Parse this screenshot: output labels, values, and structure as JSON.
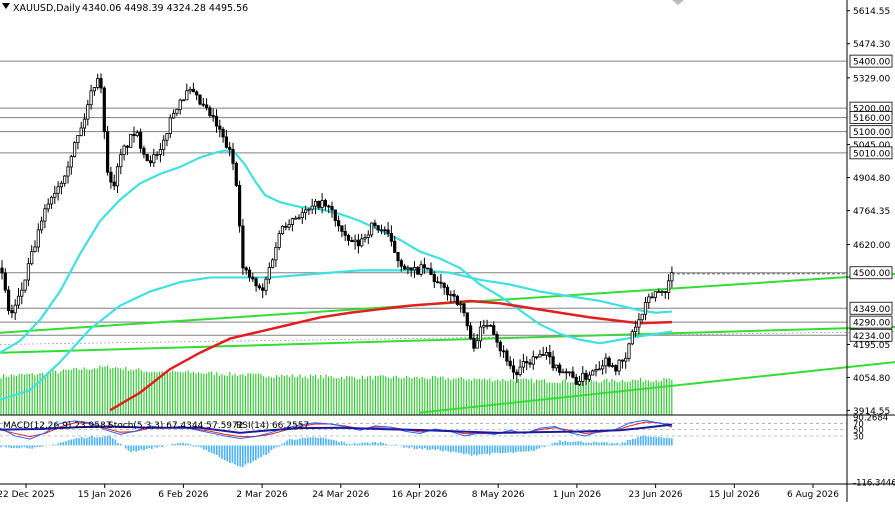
{
  "header": {
    "symbol": "XAUUSD,Daily",
    "ohlc": "4340.06 4498.39 4324.28 4495.56"
  },
  "indicator_header": {
    "macd": "MACD(12,26,9) 23.9587",
    "stoch": "Stoch(5,3,3) 67.4344 57.5972",
    "rsi": "RSI(14) 66.2557"
  },
  "colors": {
    "candles": "#000000",
    "sma_fast": "#40e0e0",
    "sma_slow": "#e02020",
    "trendline": "#33dd33",
    "volume": "#33cc33",
    "level_label_bg": "#ffffff"
  },
  "chart_data": {
    "type": "candlestick",
    "x_tick_labels": [
      "22 Dec 2025",
      "15 Jan 2026",
      "6 Feb 2026",
      "2 Mar 2026",
      "24 Mar 2026",
      "16 Apr 2026",
      "8 May 2026",
      "1 Jun 2026",
      "23 Jun 2026",
      "15 Jul 2026",
      "6 Aug 2026"
    ],
    "y_tick_labels": [
      "5614.55",
      "5474.30",
      "5329.00",
      "5045.00",
      "4904.80",
      "4764.35",
      "4620.00",
      "4195.05",
      "4054.80",
      "3914.55"
    ],
    "ylim": [
      3895,
      5660
    ],
    "levels": [
      {
        "label": "5400.00",
        "value": 5400
      },
      {
        "label": "5200.00",
        "value": 5200
      },
      {
        "label": "5160.00",
        "value": 5160
      },
      {
        "label": "5100.00",
        "value": 5100
      },
      {
        "label": "5010.00",
        "value": 5010
      },
      {
        "label": "4500.00",
        "value": 4500
      },
      {
        "label": "4349.00",
        "value": 4349
      },
      {
        "label": "4290.00",
        "value": 4290
      },
      {
        "label": "4234.00",
        "value": 4234
      }
    ],
    "price_path": [
      [
        0,
        4520
      ],
      [
        4,
        4450
      ],
      [
        10,
        4310
      ],
      [
        20,
        4400
      ],
      [
        35,
        4620
      ],
      [
        48,
        4800
      ],
      [
        62,
        4900
      ],
      [
        75,
        5050
      ],
      [
        82,
        5120
      ],
      [
        92,
        5280
      ],
      [
        100,
        5360
      ],
      [
        106,
        4980
      ],
      [
        112,
        4850
      ],
      [
        122,
        5010
      ],
      [
        135,
        5100
      ],
      [
        148,
        4980
      ],
      [
        160,
        5000
      ],
      [
        170,
        5150
      ],
      [
        180,
        5240
      ],
      [
        190,
        5270
      ],
      [
        200,
        5220
      ],
      [
        212,
        5160
      ],
      [
        222,
        5080
      ],
      [
        232,
        4990
      ],
      [
        238,
        4850
      ],
      [
        242,
        4520
      ],
      [
        250,
        4480
      ],
      [
        262,
        4410
      ],
      [
        272,
        4560
      ],
      [
        282,
        4700
      ],
      [
        295,
        4740
      ],
      [
        308,
        4760
      ],
      [
        320,
        4800
      ],
      [
        332,
        4760
      ],
      [
        345,
        4640
      ],
      [
        358,
        4620
      ],
      [
        372,
        4700
      ],
      [
        385,
        4680
      ],
      [
        398,
        4560
      ],
      [
        410,
        4500
      ],
      [
        425,
        4520
      ],
      [
        440,
        4440
      ],
      [
        455,
        4400
      ],
      [
        465,
        4320
      ],
      [
        472,
        4180
      ],
      [
        480,
        4250
      ],
      [
        490,
        4300
      ],
      [
        500,
        4180
      ],
      [
        508,
        4130
      ],
      [
        515,
        4060
      ],
      [
        522,
        4100
      ],
      [
        532,
        4130
      ],
      [
        545,
        4150
      ],
      [
        556,
        4100
      ],
      [
        566,
        4080
      ],
      [
        576,
        4040
      ],
      [
        586,
        4060
      ],
      [
        596,
        4100
      ],
      [
        606,
        4130
      ],
      [
        616,
        4100
      ],
      [
        626,
        4130
      ],
      [
        632,
        4250
      ],
      [
        640,
        4300
      ],
      [
        648,
        4380
      ],
      [
        656,
        4420
      ],
      [
        664,
        4420
      ],
      [
        672,
        4495
      ]
    ],
    "volume_path": [
      [
        0,
        4060
      ],
      [
        40,
        4070
      ],
      [
        80,
        4090
      ],
      [
        110,
        4100
      ],
      [
        150,
        4080
      ],
      [
        200,
        4075
      ],
      [
        250,
        4065
      ],
      [
        300,
        4060
      ],
      [
        350,
        4055
      ],
      [
        400,
        4055
      ],
      [
        450,
        4050
      ],
      [
        500,
        4045
      ],
      [
        550,
        4040
      ],
      [
        600,
        4040
      ],
      [
        650,
        4045
      ],
      [
        672,
        4045
      ]
    ],
    "sma_fast": [
      [
        0,
        4160
      ],
      [
        20,
        4210
      ],
      [
        40,
        4300
      ],
      [
        60,
        4420
      ],
      [
        80,
        4580
      ],
      [
        100,
        4720
      ],
      [
        120,
        4810
      ],
      [
        140,
        4880
      ],
      [
        160,
        4920
      ],
      [
        180,
        4950
      ],
      [
        200,
        4990
      ],
      [
        215,
        5010
      ],
      [
        225,
        5020
      ],
      [
        235,
        5010
      ],
      [
        245,
        4960
      ],
      [
        255,
        4890
      ],
      [
        265,
        4830
      ],
      [
        280,
        4800
      ],
      [
        300,
        4780
      ],
      [
        320,
        4770
      ],
      [
        340,
        4750
      ],
      [
        360,
        4720
      ],
      [
        380,
        4680
      ],
      [
        400,
        4640
      ],
      [
        420,
        4590
      ],
      [
        440,
        4560
      ],
      [
        460,
        4520
      ],
      [
        480,
        4450
      ],
      [
        500,
        4400
      ],
      [
        520,
        4340
      ],
      [
        540,
        4280
      ],
      [
        560,
        4240
      ],
      [
        580,
        4215
      ],
      [
        600,
        4200
      ],
      [
        620,
        4215
      ],
      [
        640,
        4230
      ],
      [
        656,
        4240
      ],
      [
        672,
        4250
      ]
    ],
    "sma_mid": [
      [
        0,
        3960
      ],
      [
        30,
        4000
      ],
      [
        60,
        4120
      ],
      [
        90,
        4260
      ],
      [
        120,
        4360
      ],
      [
        150,
        4420
      ],
      [
        180,
        4460
      ],
      [
        210,
        4480
      ],
      [
        240,
        4480
      ],
      [
        270,
        4480
      ],
      [
        300,
        4490
      ],
      [
        330,
        4500
      ],
      [
        360,
        4510
      ],
      [
        390,
        4510
      ],
      [
        420,
        4510
      ],
      [
        450,
        4500
      ],
      [
        480,
        4470
      ],
      [
        510,
        4450
      ],
      [
        540,
        4420
      ],
      [
        570,
        4400
      ],
      [
        600,
        4380
      ],
      [
        620,
        4360
      ],
      [
        640,
        4340
      ],
      [
        656,
        4330
      ],
      [
        672,
        4335
      ]
    ],
    "sma_slow": [
      [
        110,
        3915
      ],
      [
        140,
        3990
      ],
      [
        170,
        4090
      ],
      [
        200,
        4160
      ],
      [
        230,
        4220
      ],
      [
        260,
        4250
      ],
      [
        290,
        4280
      ],
      [
        320,
        4310
      ],
      [
        350,
        4330
      ],
      [
        380,
        4345
      ],
      [
        410,
        4360
      ],
      [
        440,
        4370
      ],
      [
        470,
        4380
      ],
      [
        500,
        4370
      ],
      [
        530,
        4350
      ],
      [
        560,
        4330
      ],
      [
        590,
        4310
      ],
      [
        620,
        4295
      ],
      [
        640,
        4285
      ],
      [
        656,
        4288
      ],
      [
        672,
        4290
      ]
    ],
    "trendlines": [
      {
        "from": [
          0,
          4245
        ],
        "to": [
          895,
          4495
        ]
      },
      {
        "from": [
          0,
          4160
        ],
        "to": [
          895,
          4270
        ]
      },
      {
        "from": [
          420,
          3905
        ],
        "to": [
          895,
          4120
        ]
      }
    ],
    "current_price": 4495.56,
    "indicator_panel": {
      "y_tick_labels": [
        "90.2684",
        "70",
        "50",
        "30",
        "-116.3446"
      ],
      "ylim": [
        -116.3446,
        90.2684
      ],
      "stoch_k": [
        [
          0,
          55
        ],
        [
          15,
          30
        ],
        [
          30,
          20
        ],
        [
          45,
          40
        ],
        [
          60,
          70
        ],
        [
          75,
          78
        ],
        [
          90,
          72
        ],
        [
          105,
          50
        ],
        [
          120,
          35
        ],
        [
          135,
          45
        ],
        [
          150,
          62
        ],
        [
          165,
          55
        ],
        [
          180,
          60
        ],
        [
          195,
          50
        ],
        [
          210,
          40
        ],
        [
          225,
          30
        ],
        [
          240,
          22
        ],
        [
          255,
          28
        ],
        [
          270,
          40
        ],
        [
          285,
          55
        ],
        [
          300,
          65
        ],
        [
          315,
          72
        ],
        [
          330,
          68
        ],
        [
          345,
          60
        ],
        [
          360,
          48
        ],
        [
          375,
          62
        ],
        [
          390,
          58
        ],
        [
          405,
          45
        ],
        [
          420,
          38
        ],
        [
          435,
          52
        ],
        [
          450,
          45
        ],
        [
          465,
          30
        ],
        [
          480,
          40
        ],
        [
          495,
          35
        ],
        [
          510,
          48
        ],
        [
          525,
          38
        ],
        [
          540,
          55
        ],
        [
          555,
          60
        ],
        [
          570,
          40
        ],
        [
          585,
          30
        ],
        [
          600,
          45
        ],
        [
          615,
          50
        ],
        [
          630,
          72
        ],
        [
          645,
          80
        ],
        [
          660,
          70
        ],
        [
          672,
          67
        ]
      ],
      "stoch_d": [
        [
          0,
          50
        ],
        [
          15,
          38
        ],
        [
          30,
          28
        ],
        [
          45,
          38
        ],
        [
          60,
          58
        ],
        [
          75,
          72
        ],
        [
          90,
          70
        ],
        [
          105,
          55
        ],
        [
          120,
          42
        ],
        [
          135,
          44
        ],
        [
          150,
          55
        ],
        [
          165,
          56
        ],
        [
          180,
          58
        ],
        [
          195,
          52
        ],
        [
          210,
          45
        ],
        [
          225,
          35
        ],
        [
          240,
          28
        ],
        [
          255,
          28
        ],
        [
          270,
          35
        ],
        [
          285,
          48
        ],
        [
          300,
          60
        ],
        [
          315,
          68
        ],
        [
          330,
          68
        ],
        [
          345,
          62
        ],
        [
          360,
          53
        ],
        [
          375,
          58
        ],
        [
          390,
          58
        ],
        [
          405,
          50
        ],
        [
          420,
          43
        ],
        [
          435,
          48
        ],
        [
          450,
          47
        ],
        [
          465,
          37
        ],
        [
          480,
          38
        ],
        [
          495,
          37
        ],
        [
          510,
          43
        ],
        [
          525,
          40
        ],
        [
          540,
          50
        ],
        [
          555,
          56
        ],
        [
          570,
          48
        ],
        [
          585,
          38
        ],
        [
          600,
          42
        ],
        [
          615,
          48
        ],
        [
          630,
          62
        ],
        [
          645,
          74
        ],
        [
          660,
          72
        ],
        [
          672,
          58
        ]
      ],
      "rsi": [
        [
          0,
          50
        ],
        [
          40,
          52
        ],
        [
          80,
          58
        ],
        [
          110,
          60
        ],
        [
          150,
          56
        ],
        [
          200,
          56
        ],
        [
          240,
          40
        ],
        [
          270,
          48
        ],
        [
          300,
          55
        ],
        [
          340,
          56
        ],
        [
          380,
          52
        ],
        [
          420,
          49
        ],
        [
          460,
          44
        ],
        [
          500,
          40
        ],
        [
          540,
          42
        ],
        [
          580,
          44
        ],
        [
          620,
          48
        ],
        [
          650,
          58
        ],
        [
          672,
          66
        ]
      ],
      "macd_hist": [
        [
          0,
          -5
        ],
        [
          40,
          -8
        ],
        [
          80,
          25
        ],
        [
          110,
          30
        ],
        [
          130,
          -20
        ],
        [
          150,
          -10
        ],
        [
          180,
          8
        ],
        [
          200,
          -5
        ],
        [
          240,
          -70
        ],
        [
          260,
          -40
        ],
        [
          290,
          20
        ],
        [
          320,
          25
        ],
        [
          350,
          5
        ],
        [
          380,
          10
        ],
        [
          410,
          -8
        ],
        [
          440,
          -15
        ],
        [
          470,
          -30
        ],
        [
          500,
          -25
        ],
        [
          530,
          -20
        ],
        [
          560,
          15
        ],
        [
          590,
          10
        ],
        [
          620,
          5
        ],
        [
          640,
          30
        ],
        [
          660,
          25
        ],
        [
          672,
          24
        ]
      ]
    }
  }
}
